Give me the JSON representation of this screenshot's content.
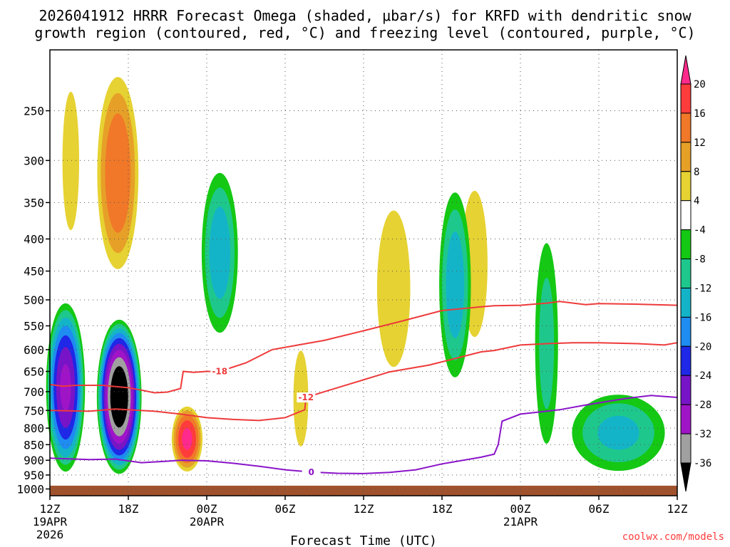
{
  "chart_data": {
    "type": "contour-timeheight",
    "title_line1": "2026041912 HRRR Forecast Omega (shaded, μbar/s) for KRFD with dendritic snow",
    "title_line2": "growth region (contoured, red, °C) and freezing level (contoured, purple, °C)",
    "xlabel": "Forecast Time (UTC)",
    "credit": "coolwx.com/models",
    "x_range_hours": [
      0,
      48
    ],
    "y_range_hpa": [
      1000,
      200
    ],
    "y_ticks": [
      250,
      300,
      350,
      400,
      450,
      500,
      550,
      600,
      650,
      700,
      750,
      800,
      850,
      900,
      950,
      1000
    ],
    "x_ticks": [
      {
        "h": 0,
        "label": "12Z",
        "date": "19APR",
        "year": "2026"
      },
      {
        "h": 6,
        "label": "18Z"
      },
      {
        "h": 12,
        "label": "00Z",
        "date": "20APR"
      },
      {
        "h": 18,
        "label": "06Z"
      },
      {
        "h": 24,
        "label": "12Z"
      },
      {
        "h": 30,
        "label": "18Z"
      },
      {
        "h": 36,
        "label": "00Z",
        "date": "21APR"
      },
      {
        "h": 42,
        "label": "06Z"
      },
      {
        "h": 48,
        "label": "12Z"
      }
    ],
    "colorbar": {
      "labels": [
        "20",
        "16",
        "12",
        "8",
        "4",
        "-4",
        "-8",
        "-12",
        "-16",
        "-20",
        "-24",
        "-28",
        "-32",
        "-36"
      ],
      "colors": [
        "#ff2a8c",
        "#ff3c3c",
        "#f07828",
        "#e6a028",
        "#e6d232",
        "#ffffff",
        "#14c814",
        "#1ec88c",
        "#14b4c8",
        "#1e8cf0",
        "#1e28e6",
        "#7814c8",
        "#a014c8",
        "#a0a0a0",
        "#000000"
      ]
    },
    "contours_red": [
      {
        "label": "-18",
        "points": [
          [
            0,
            682
          ],
          [
            1,
            686
          ],
          [
            2,
            684
          ],
          [
            4,
            684
          ],
          [
            6,
            690
          ],
          [
            7,
            696
          ],
          [
            8,
            703
          ],
          [
            9,
            701
          ],
          [
            10,
            692
          ],
          [
            10.2,
            650
          ],
          [
            11,
            652
          ],
          [
            12,
            650
          ],
          [
            13,
            650
          ],
          [
            15,
            630
          ],
          [
            17,
            600
          ],
          [
            19,
            590
          ],
          [
            21,
            580
          ],
          [
            24,
            560
          ],
          [
            27,
            540
          ],
          [
            30,
            520
          ],
          [
            33,
            513
          ],
          [
            34,
            511
          ],
          [
            36,
            510
          ],
          [
            38,
            506
          ],
          [
            39,
            503
          ],
          [
            41,
            509
          ],
          [
            42,
            507
          ],
          [
            45,
            508
          ],
          [
            48,
            510
          ]
        ]
      },
      {
        "label": "-12",
        "points": [
          [
            0,
            750
          ],
          [
            3,
            752
          ],
          [
            5,
            746
          ],
          [
            8,
            752
          ],
          [
            10,
            760
          ],
          [
            12,
            770
          ],
          [
            14,
            775
          ],
          [
            16,
            778
          ],
          [
            18,
            770
          ],
          [
            19.5,
            748
          ],
          [
            19.6,
            715
          ],
          [
            21,
            700
          ],
          [
            23,
            680
          ],
          [
            26,
            651
          ],
          [
            29,
            635
          ],
          [
            31,
            620
          ],
          [
            33,
            605
          ],
          [
            34,
            602
          ],
          [
            36,
            590
          ],
          [
            38,
            587
          ],
          [
            40,
            585
          ],
          [
            42,
            585
          ],
          [
            45,
            587
          ],
          [
            47,
            590
          ],
          [
            48,
            585
          ]
        ]
      }
    ],
    "contours_purple": [
      {
        "label": "0",
        "points": [
          [
            0,
            893
          ],
          [
            3,
            898
          ],
          [
            5,
            896
          ],
          [
            7,
            908
          ],
          [
            9,
            903
          ],
          [
            10,
            900
          ],
          [
            12,
            902
          ],
          [
            14,
            910
          ],
          [
            16,
            920
          ],
          [
            18,
            932
          ],
          [
            20,
            940
          ],
          [
            22,
            944
          ],
          [
            24,
            945
          ],
          [
            26,
            941
          ],
          [
            28,
            932
          ],
          [
            30,
            912
          ],
          [
            33,
            890
          ],
          [
            34,
            880
          ],
          [
            34.3,
            850
          ],
          [
            34.6,
            780
          ],
          [
            36,
            760
          ],
          [
            39,
            748
          ],
          [
            41,
            735
          ],
          [
            44,
            718
          ],
          [
            46,
            710
          ],
          [
            48,
            715
          ]
        ]
      }
    ],
    "omega_features": [
      {
        "hour": 1.6,
        "p_top": 210,
        "p_bot": 430,
        "w": 0.9,
        "peak": 6
      },
      {
        "hour": 5.2,
        "p_top": 210,
        "p_bot": 470,
        "w": 1.8,
        "peak": 15
      },
      {
        "hour": 1.2,
        "p_top": 495,
        "p_bot": 960,
        "w": 1.6,
        "peak": -28
      },
      {
        "hour": 5.3,
        "p_top": 530,
        "p_bot": 960,
        "w": 1.8,
        "peak": -40
      },
      {
        "hour": 13,
        "p_top": 300,
        "p_bot": 590,
        "w": 1.6,
        "peak": -14
      },
      {
        "hour": 10.5,
        "p_top": 730,
        "p_bot": 950,
        "w": 1.3,
        "peak": 20
      },
      {
        "hour": 19.2,
        "p_top": 560,
        "p_bot": 920,
        "w": 0.8,
        "peak": 6
      },
      {
        "hour": 26.3,
        "p_top": 320,
        "p_bot": 720,
        "w": 1.8,
        "peak": 6
      },
      {
        "hour": 32.5,
        "p_top": 300,
        "p_bot": 640,
        "w": 1.4,
        "peak": 6
      },
      {
        "hour": 31,
        "p_top": 320,
        "p_bot": 700,
        "w": 1.4,
        "peak": -14
      },
      {
        "hour": 38,
        "p_top": 370,
        "p_bot": 930,
        "w": 1.1,
        "peak": -9
      },
      {
        "hour": 43.5,
        "p_top": 690,
        "p_bot": 960,
        "w": 4.2,
        "peak": -12
      }
    ],
    "ground_color": "#a0522d"
  }
}
